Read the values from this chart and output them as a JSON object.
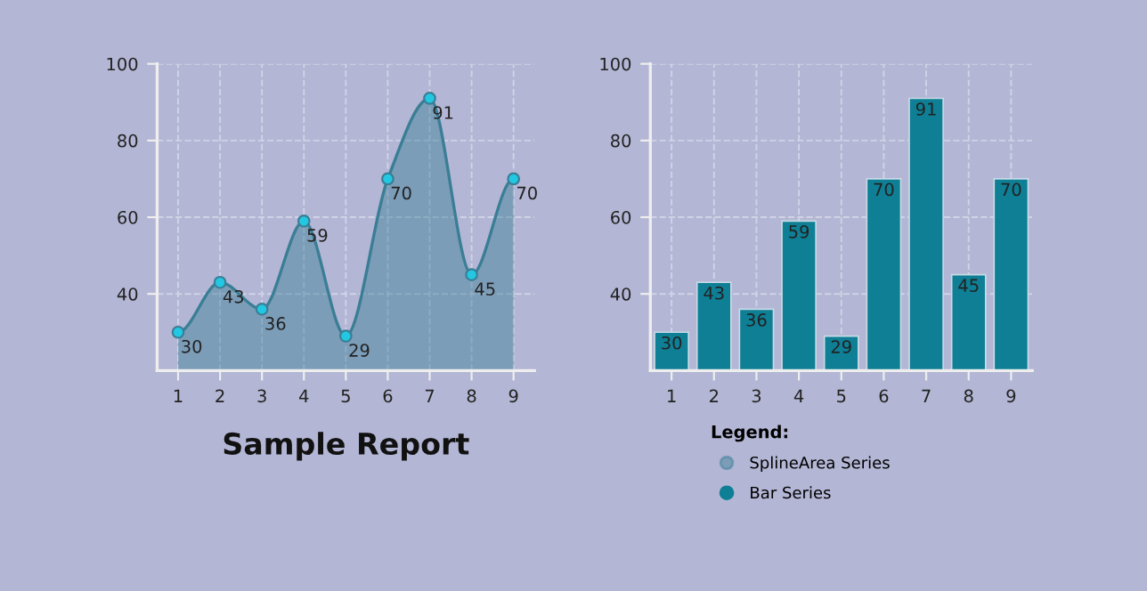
{
  "chart_data": [
    {
      "type": "area",
      "title": "Sample Report",
      "x": [
        1,
        2,
        3,
        4,
        5,
        6,
        7,
        8,
        9
      ],
      "xlim": [
        0.5,
        9.5
      ],
      "xticks": [
        1,
        2,
        3,
        4,
        5,
        6,
        7,
        8,
        9
      ],
      "ylim": [
        20,
        100
      ],
      "yticks": [
        40,
        60,
        80,
        100
      ],
      "grid": true,
      "marker": "circle",
      "data_labels": true,
      "legend": "bottom",
      "series": [
        {
          "name": "SplineArea Series",
          "color": "#3a7e96",
          "values": [
            30,
            43,
            36,
            59,
            29,
            70,
            91,
            45,
            70
          ]
        }
      ]
    },
    {
      "type": "bar",
      "categories": [
        "1",
        "2",
        "3",
        "4",
        "5",
        "6",
        "7",
        "8",
        "9"
      ],
      "ylim": [
        20,
        100
      ],
      "yticks": [
        40,
        60,
        80,
        100
      ],
      "grid": true,
      "data_labels": true,
      "legend": "bottom",
      "legend_title": "Legend:",
      "series": [
        {
          "name": "Bar Series",
          "color": "#0e7f95",
          "values": [
            30,
            43,
            36,
            59,
            29,
            70,
            91,
            45,
            70
          ]
        }
      ]
    }
  ]
}
